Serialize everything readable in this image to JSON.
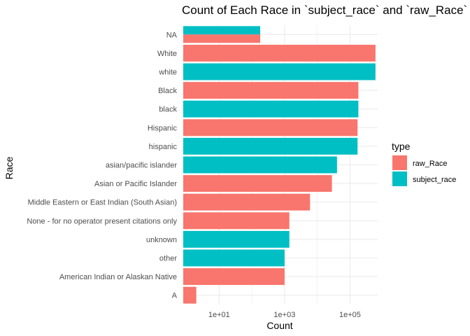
{
  "chart_data": {
    "type": "bar",
    "orientation": "horizontal",
    "title": "Count of Each Race in `subject_race` and `raw_Race`",
    "xlabel": "Count",
    "ylabel": "Race",
    "x_scale": "log10",
    "xlim": [
      0.8,
      700000
    ],
    "x_ticks": [
      10,
      1000,
      100000
    ],
    "x_tick_labels": [
      "1e+01",
      "1e+03",
      "1e+05"
    ],
    "grid": true,
    "legend_position": "right",
    "legend_title": "type",
    "series": [
      {
        "name": "raw_Race",
        "color": "#F8766D"
      },
      {
        "name": "subject_race",
        "color": "#00BFC4"
      }
    ],
    "categories": [
      "NA",
      "White",
      "white",
      "Black",
      "black",
      "Hispanic",
      "hispanic",
      "asian/pacific islander",
      "Asian or Pacific Islander",
      "Middle Eastern or East Indian (South Asian)",
      "None - for no operator present citations only",
      "unknown",
      "other",
      "American Indian or Alaskan Native",
      "A"
    ],
    "bars": [
      {
        "category": "NA",
        "type": "subject_race",
        "value": 180
      },
      {
        "category": "NA",
        "type": "raw_Race",
        "value": 180
      },
      {
        "category": "White",
        "type": "raw_Race",
        "value": 600000
      },
      {
        "category": "white",
        "type": "subject_race",
        "value": 600000
      },
      {
        "category": "Black",
        "type": "raw_Race",
        "value": 180000
      },
      {
        "category": "black",
        "type": "subject_race",
        "value": 180000
      },
      {
        "category": "Hispanic",
        "type": "raw_Race",
        "value": 170000
      },
      {
        "category": "hispanic",
        "type": "subject_race",
        "value": 170000
      },
      {
        "category": "asian/pacific islander",
        "type": "subject_race",
        "value": 40000
      },
      {
        "category": "Asian or Pacific Islander",
        "type": "raw_Race",
        "value": 28000
      },
      {
        "category": "Middle Eastern or East Indian (South Asian)",
        "type": "raw_Race",
        "value": 6000
      },
      {
        "category": "None - for no operator present citations only",
        "type": "raw_Race",
        "value": 1400
      },
      {
        "category": "unknown",
        "type": "subject_race",
        "value": 1400
      },
      {
        "category": "other",
        "type": "subject_race",
        "value": 1000
      },
      {
        "category": "American Indian or Alaskan Native",
        "type": "raw_Race",
        "value": 1000
      },
      {
        "category": "A",
        "type": "raw_Race",
        "value": 2
      }
    ]
  }
}
